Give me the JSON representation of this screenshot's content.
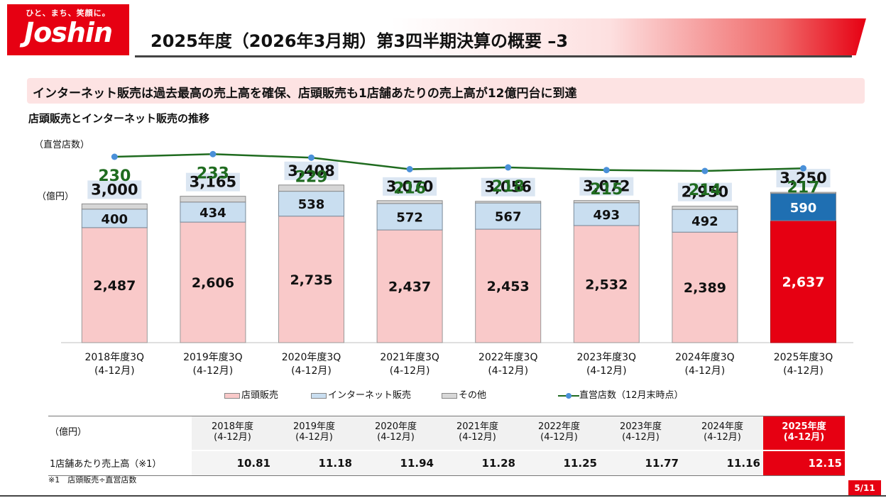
{
  "logo": {
    "tagline": "ひと、まち、笑顔に。",
    "name": "Joshin"
  },
  "page_title": "2025年度（2026年3月期）第3四半期決算の概要 –3",
  "headline": "インターネット販売は過去最高の売上高を確保、店頭販売も1店舗あたりの売上高が12億円台に到達",
  "subtitle": "店頭販売とインターネット販売の推移",
  "unit_stores": "（直営店数）",
  "unit_yen": "（億円）",
  "colors": {
    "brand_red": "#e60012",
    "store_pink": "#f9c9c9",
    "net_blue": "#c9def0",
    "net_blue_current": "#1f6fb2",
    "line_green": "#1f6b1f",
    "line_marker": "#4a90d9"
  },
  "chart_data": {
    "type": "bar",
    "stacked": true,
    "categories": [
      [
        "2018年度3Q",
        "(4-12月)"
      ],
      [
        "2019年度3Q",
        "(4-12月)"
      ],
      [
        "2020年度3Q",
        "(4-12月)"
      ],
      [
        "2021年度3Q",
        "(4-12月)"
      ],
      [
        "2022年度3Q",
        "(4-12月)"
      ],
      [
        "2023年度3Q",
        "(4-12月)"
      ],
      [
        "2024年度3Q",
        "(4-12月)"
      ],
      [
        "2025年度3Q",
        "(4-12月)"
      ]
    ],
    "series": [
      {
        "name": "店頭販売",
        "values": [
          2487,
          2606,
          2735,
          2437,
          2453,
          2532,
          2389,
          2637
        ],
        "labels": [
          "2,487",
          "2,606",
          "2,735",
          "2,437",
          "2,453",
          "2,532",
          "2,389",
          "2,637"
        ]
      },
      {
        "name": "インターネット販売",
        "values": [
          400,
          434,
          538,
          572,
          567,
          493,
          492,
          590
        ],
        "labels": [
          "400",
          "434",
          "538",
          "572",
          "567",
          "493",
          "492",
          "590"
        ]
      },
      {
        "name": "その他",
        "values": [
          113,
          125,
          135,
          61,
          36,
          47,
          69,
          23
        ]
      }
    ],
    "totals": [
      3000,
      3165,
      3408,
      3070,
      3056,
      3072,
      2950,
      3250
    ],
    "total_labels": [
      "3,000",
      "3,165",
      "3,408",
      "3,070",
      "3,056",
      "3,072",
      "2,950",
      "3,250"
    ],
    "line_series": {
      "name": "直営店数（12月末時点）",
      "values": [
        230,
        233,
        229,
        216,
        218,
        215,
        214,
        217
      ]
    },
    "highlight_index": 7,
    "legend_placement": "bottom",
    "grid": false
  },
  "legend": {
    "store": "店頭販売",
    "net": "インターネット販売",
    "other": "その他",
    "line": "直営店数（12月末時点）"
  },
  "table": {
    "unit": "（億円）",
    "columns": [
      [
        "2018年度",
        "(4-12月)"
      ],
      [
        "2019年度",
        "(4-12月)"
      ],
      [
        "2020年度",
        "(4-12月)"
      ],
      [
        "2021年度",
        "(4-12月)"
      ],
      [
        "2022年度",
        "(4-12月)"
      ],
      [
        "2023年度",
        "(4-12月)"
      ],
      [
        "2024年度",
        "(4-12月)"
      ],
      [
        "2025年度",
        "(4-12月)"
      ]
    ],
    "row_label": "1店舗あたり売上高（※1）",
    "values": [
      "10.81",
      "11.18",
      "11.94",
      "11.28",
      "11.25",
      "11.77",
      "11.16",
      "12.15"
    ]
  },
  "footnote": "※1　店頭販売÷直営店数",
  "page_number": "5/11"
}
